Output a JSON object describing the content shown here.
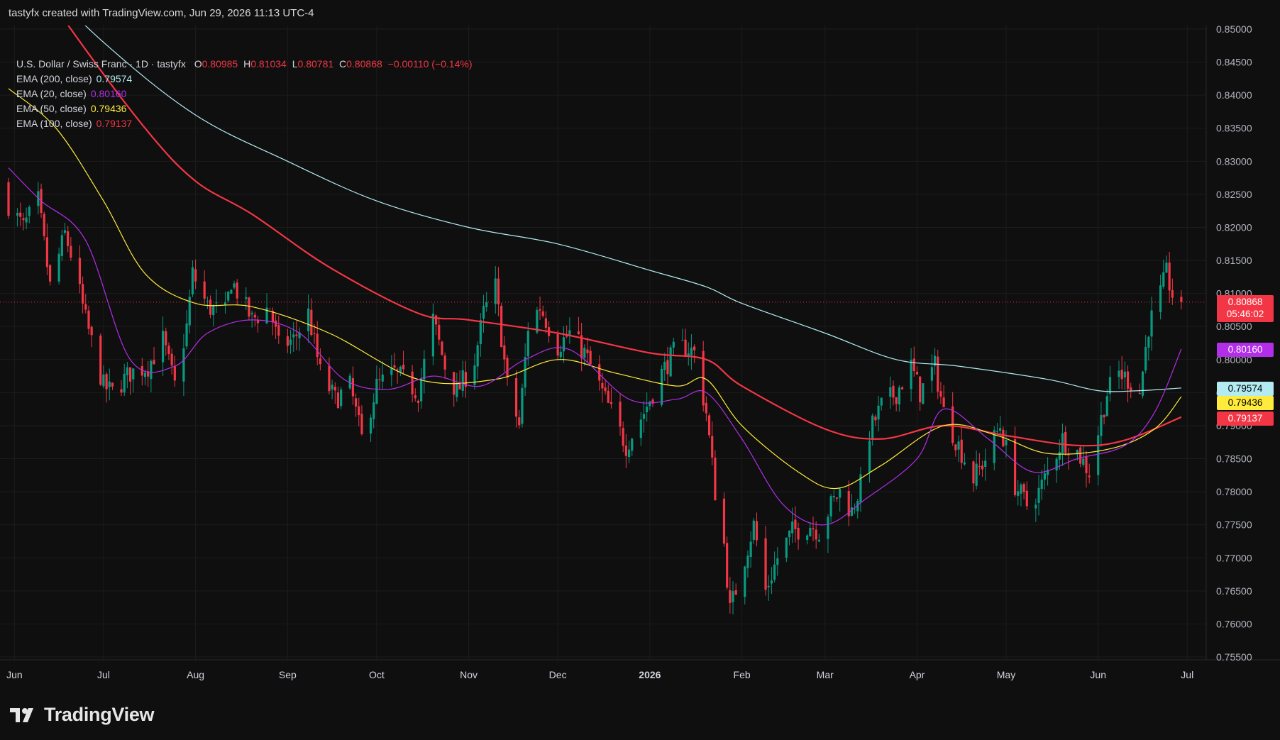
{
  "header": {
    "attribution": "tastyfx created with TradingView.com, Jun 29, 2026 11:13 UTC-4"
  },
  "legend": {
    "symbol_line": "U.S. Dollar / Swiss Franc · 1D · tastyfx",
    "ohlc": {
      "o_label": "O",
      "o": "0.80985",
      "h_label": "H",
      "h": "0.81034",
      "l_label": "L",
      "l": "0.80781",
      "c_label": "C",
      "c": "0.80868",
      "change": "−0.00110 (−0.14%)"
    },
    "indicators": [
      {
        "label": "EMA (200, close)",
        "value": "0.79574",
        "color": "#b2ebf2"
      },
      {
        "label": "EMA (20, close)",
        "value": "0.80160",
        "color": "#b22ee8"
      },
      {
        "label": "EMA (50, close)",
        "value": "0.79436",
        "color": "#ffeb3b"
      },
      {
        "label": "EMA (100, close)",
        "value": "0.79137",
        "color": "#f23645"
      }
    ]
  },
  "price_tags": {
    "last_price": "0.80868",
    "countdown": "05:46:02",
    "ema20": "0.80160",
    "ema200": "0.79574",
    "ema50": "0.79436",
    "ema100": "0.79137"
  },
  "footer": {
    "brand": "TradingView"
  },
  "colors": {
    "up": "#089981",
    "down": "#f23645",
    "background": "#0f0f0f",
    "grid": "#1c1c1c",
    "ema200": "#b2ebf2",
    "ema20": "#b22ee8",
    "ema50": "#ffeb3b",
    "ema100": "#f23645"
  },
  "chart_data": {
    "type": "candlestick",
    "title": "U.S. Dollar / Swiss Franc · 1D · tastyfx",
    "ylim": [
      0.7535,
      0.8515
    ],
    "y_ticks": [
      "0.85000",
      "0.84500",
      "0.84000",
      "0.83500",
      "0.83000",
      "0.82500",
      "0.82000",
      "0.81500",
      "0.81000",
      "0.80500",
      "0.80000",
      "0.79500",
      "0.79000",
      "0.78500",
      "0.78000",
      "0.77500",
      "0.77000",
      "0.76500",
      "0.76000",
      "0.75500"
    ],
    "x_ticks": [
      "Jun",
      "Jul",
      "Aug",
      "Sep",
      "Oct",
      "Nov",
      "Dec",
      "2026",
      "Feb",
      "Mar",
      "Apr",
      "May",
      "Jun",
      "Jul"
    ],
    "x_tick_dates": [
      "2025-06-01",
      "2025-07-01",
      "2025-08-01",
      "2025-09-01",
      "2025-10-01",
      "2025-11-01",
      "2025-12-01",
      "2026-01-01",
      "2026-02-01",
      "2026-03-01",
      "2026-04-01",
      "2026-05-01",
      "2026-06-01",
      "2026-07-01"
    ],
    "x_range": [
      "2025-05-30",
      "2026-07-05"
    ],
    "close_anchors": [
      [
        "2025-05-30",
        0.8235
      ],
      [
        "2025-06-04",
        0.82
      ],
      [
        "2025-06-09",
        0.824
      ],
      [
        "2025-06-13",
        0.811
      ],
      [
        "2025-06-18",
        0.819
      ],
      [
        "2025-06-20",
        0.816
      ],
      [
        "2025-06-25",
        0.806
      ],
      [
        "2025-07-01",
        0.796
      ],
      [
        "2025-07-04",
        0.795
      ],
      [
        "2025-07-10",
        0.798
      ],
      [
        "2025-07-16",
        0.799
      ],
      [
        "2025-07-21",
        0.803
      ],
      [
        "2025-07-25",
        0.796
      ],
      [
        "2025-07-29",
        0.805
      ],
      [
        "2025-07-31",
        0.813
      ],
      [
        "2025-08-05",
        0.808
      ],
      [
        "2025-08-11",
        0.807
      ],
      [
        "2025-08-13",
        0.812
      ],
      [
        "2025-08-20",
        0.806
      ],
      [
        "2025-08-26",
        0.808
      ],
      [
        "2025-08-29",
        0.802
      ],
      [
        "2025-09-03",
        0.803
      ],
      [
        "2025-09-08",
        0.807
      ],
      [
        "2025-09-12",
        0.798
      ],
      [
        "2025-09-17",
        0.794
      ],
      [
        "2025-09-22",
        0.796
      ],
      [
        "2025-09-26",
        0.788
      ],
      [
        "2025-10-01",
        0.796
      ],
      [
        "2025-10-07",
        0.798
      ],
      [
        "2025-10-10",
        0.797
      ],
      [
        "2025-10-15",
        0.795
      ],
      [
        "2025-10-20",
        0.806
      ],
      [
        "2025-10-24",
        0.799
      ],
      [
        "2025-10-28",
        0.795
      ],
      [
        "2025-11-03",
        0.8
      ],
      [
        "2025-11-06",
        0.807
      ],
      [
        "2025-11-10",
        0.811
      ],
      [
        "2025-11-14",
        0.796
      ],
      [
        "2025-11-18",
        0.79
      ],
      [
        "2025-11-21",
        0.805
      ],
      [
        "2025-11-25",
        0.808
      ],
      [
        "2025-12-01",
        0.802
      ],
      [
        "2025-12-05",
        0.804
      ],
      [
        "2025-12-10",
        0.801
      ],
      [
        "2025-12-15",
        0.796
      ],
      [
        "2025-12-19",
        0.792
      ],
      [
        "2025-12-24",
        0.787
      ],
      [
        "2025-12-30",
        0.792
      ],
      [
        "2026-01-05",
        0.798
      ],
      [
        "2026-01-09",
        0.801
      ],
      [
        "2026-01-13",
        0.802
      ],
      [
        "2026-01-16",
        0.801
      ],
      [
        "2026-01-20",
        0.792
      ],
      [
        "2026-01-23",
        0.78
      ],
      [
        "2026-01-26",
        0.772
      ],
      [
        "2026-01-28",
        0.762
      ],
      [
        "2026-02-02",
        0.77
      ],
      [
        "2026-02-05",
        0.775
      ],
      [
        "2026-02-09",
        0.765
      ],
      [
        "2026-02-13",
        0.77
      ],
      [
        "2026-02-18",
        0.774
      ],
      [
        "2026-02-24",
        0.775
      ],
      [
        "2026-02-27",
        0.774
      ],
      [
        "2026-03-03",
        0.778
      ],
      [
        "2026-03-06",
        0.78
      ],
      [
        "2026-03-10",
        0.777
      ],
      [
        "2026-03-13",
        0.781
      ],
      [
        "2026-03-16",
        0.789
      ],
      [
        "2026-03-20",
        0.793
      ],
      [
        "2026-03-25",
        0.795
      ],
      [
        "2026-03-30",
        0.799
      ],
      [
        "2026-04-02",
        0.795
      ],
      [
        "2026-04-07",
        0.799
      ],
      [
        "2026-04-10",
        0.792
      ],
      [
        "2026-04-15",
        0.787
      ],
      [
        "2026-04-20",
        0.782
      ],
      [
        "2026-04-24",
        0.785
      ],
      [
        "2026-04-29",
        0.79
      ],
      [
        "2026-05-04",
        0.781
      ],
      [
        "2026-05-08",
        0.778
      ],
      [
        "2026-05-12",
        0.78
      ],
      [
        "2026-05-15",
        0.783
      ],
      [
        "2026-05-20",
        0.788
      ],
      [
        "2026-05-25",
        0.786
      ],
      [
        "2026-05-29",
        0.783
      ],
      [
        "2026-06-01",
        0.789
      ],
      [
        "2026-06-04",
        0.795
      ],
      [
        "2026-06-08",
        0.798
      ],
      [
        "2026-06-11",
        0.797
      ],
      [
        "2026-06-15",
        0.795
      ],
      [
        "2026-06-18",
        0.805
      ],
      [
        "2026-06-22",
        0.81
      ],
      [
        "2026-06-24",
        0.813
      ],
      [
        "2026-06-26",
        0.8098
      ],
      [
        "2026-06-29",
        0.8087
      ]
    ],
    "ema_200": [
      [
        "2025-05-30",
        0.862
      ],
      [
        "2025-07-01",
        0.848
      ],
      [
        "2025-08-01",
        0.837
      ],
      [
        "2025-09-01",
        0.83
      ],
      [
        "2025-10-01",
        0.824
      ],
      [
        "2025-11-01",
        0.82
      ],
      [
        "2025-12-01",
        0.8175
      ],
      [
        "2026-01-01",
        0.8135
      ],
      [
        "2026-01-20",
        0.811
      ],
      [
        "2026-02-01",
        0.8085
      ],
      [
        "2026-03-01",
        0.804
      ],
      [
        "2026-03-25",
        0.8
      ],
      [
        "2026-04-15",
        0.799
      ],
      [
        "2026-05-15",
        0.797
      ],
      [
        "2026-06-01",
        0.7953
      ],
      [
        "2026-06-15",
        0.7953
      ],
      [
        "2026-06-29",
        0.7957
      ]
    ],
    "ema_100": [
      [
        "2025-05-30",
        0.864
      ],
      [
        "2025-06-20",
        0.85
      ],
      [
        "2025-07-15",
        0.835
      ],
      [
        "2025-08-01",
        0.827
      ],
      [
        "2025-08-20",
        0.822
      ],
      [
        "2025-09-15",
        0.814
      ],
      [
        "2025-10-15",
        0.807
      ],
      [
        "2025-11-01",
        0.806
      ],
      [
        "2025-12-01",
        0.804
      ],
      [
        "2026-01-01",
        0.801
      ],
      [
        "2026-01-20",
        0.8
      ],
      [
        "2026-02-01",
        0.796
      ],
      [
        "2026-03-01",
        0.7895
      ],
      [
        "2026-03-20",
        0.788
      ],
      [
        "2026-04-10",
        0.79
      ],
      [
        "2026-05-01",
        0.7885
      ],
      [
        "2026-05-25",
        0.787
      ],
      [
        "2026-06-10",
        0.7878
      ],
      [
        "2026-06-29",
        0.7913
      ]
    ],
    "ema_50": [
      [
        "2025-05-30",
        0.841
      ],
      [
        "2025-06-15",
        0.835
      ],
      [
        "2025-07-01",
        0.824
      ],
      [
        "2025-07-15",
        0.813
      ],
      [
        "2025-08-01",
        0.8085
      ],
      [
        "2025-08-20",
        0.808
      ],
      [
        "2025-09-15",
        0.804
      ],
      [
        "2025-10-15",
        0.797
      ],
      [
        "2025-11-10",
        0.797
      ],
      [
        "2025-12-01",
        0.8
      ],
      [
        "2025-12-20",
        0.798
      ],
      [
        "2026-01-10",
        0.796
      ],
      [
        "2026-01-20",
        0.797
      ],
      [
        "2026-02-01",
        0.79
      ],
      [
        "2026-02-20",
        0.783
      ],
      [
        "2026-03-05",
        0.7805
      ],
      [
        "2026-03-20",
        0.784
      ],
      [
        "2026-04-10",
        0.79
      ],
      [
        "2026-04-28",
        0.7885
      ],
      [
        "2026-05-15",
        0.7858
      ],
      [
        "2026-06-05",
        0.7865
      ],
      [
        "2026-06-20",
        0.7895
      ],
      [
        "2026-06-29",
        0.7944
      ]
    ],
    "ema_20": [
      [
        "2025-05-30",
        0.829
      ],
      [
        "2025-06-10",
        0.824
      ],
      [
        "2025-06-25",
        0.818
      ],
      [
        "2025-07-10",
        0.8
      ],
      [
        "2025-07-25",
        0.799
      ],
      [
        "2025-08-05",
        0.804
      ],
      [
        "2025-08-20",
        0.806
      ],
      [
        "2025-09-05",
        0.804
      ],
      [
        "2025-09-20",
        0.797
      ],
      [
        "2025-10-05",
        0.7955
      ],
      [
        "2025-10-20",
        0.7975
      ],
      [
        "2025-11-05",
        0.796
      ],
      [
        "2025-11-20",
        0.8
      ],
      [
        "2025-12-05",
        0.8015
      ],
      [
        "2025-12-25",
        0.794
      ],
      [
        "2026-01-10",
        0.794
      ],
      [
        "2026-01-20",
        0.795
      ],
      [
        "2026-02-01",
        0.788
      ],
      [
        "2026-02-15",
        0.778
      ],
      [
        "2026-03-01",
        0.775
      ],
      [
        "2026-03-15",
        0.779
      ],
      [
        "2026-04-01",
        0.785
      ],
      [
        "2026-04-10",
        0.7925
      ],
      [
        "2026-04-25",
        0.788
      ],
      [
        "2026-05-10",
        0.783
      ],
      [
        "2026-05-25",
        0.785
      ],
      [
        "2026-06-10",
        0.787
      ],
      [
        "2026-06-20",
        0.792
      ],
      [
        "2026-06-29",
        0.8016
      ]
    ],
    "last_close": 0.80868
  }
}
